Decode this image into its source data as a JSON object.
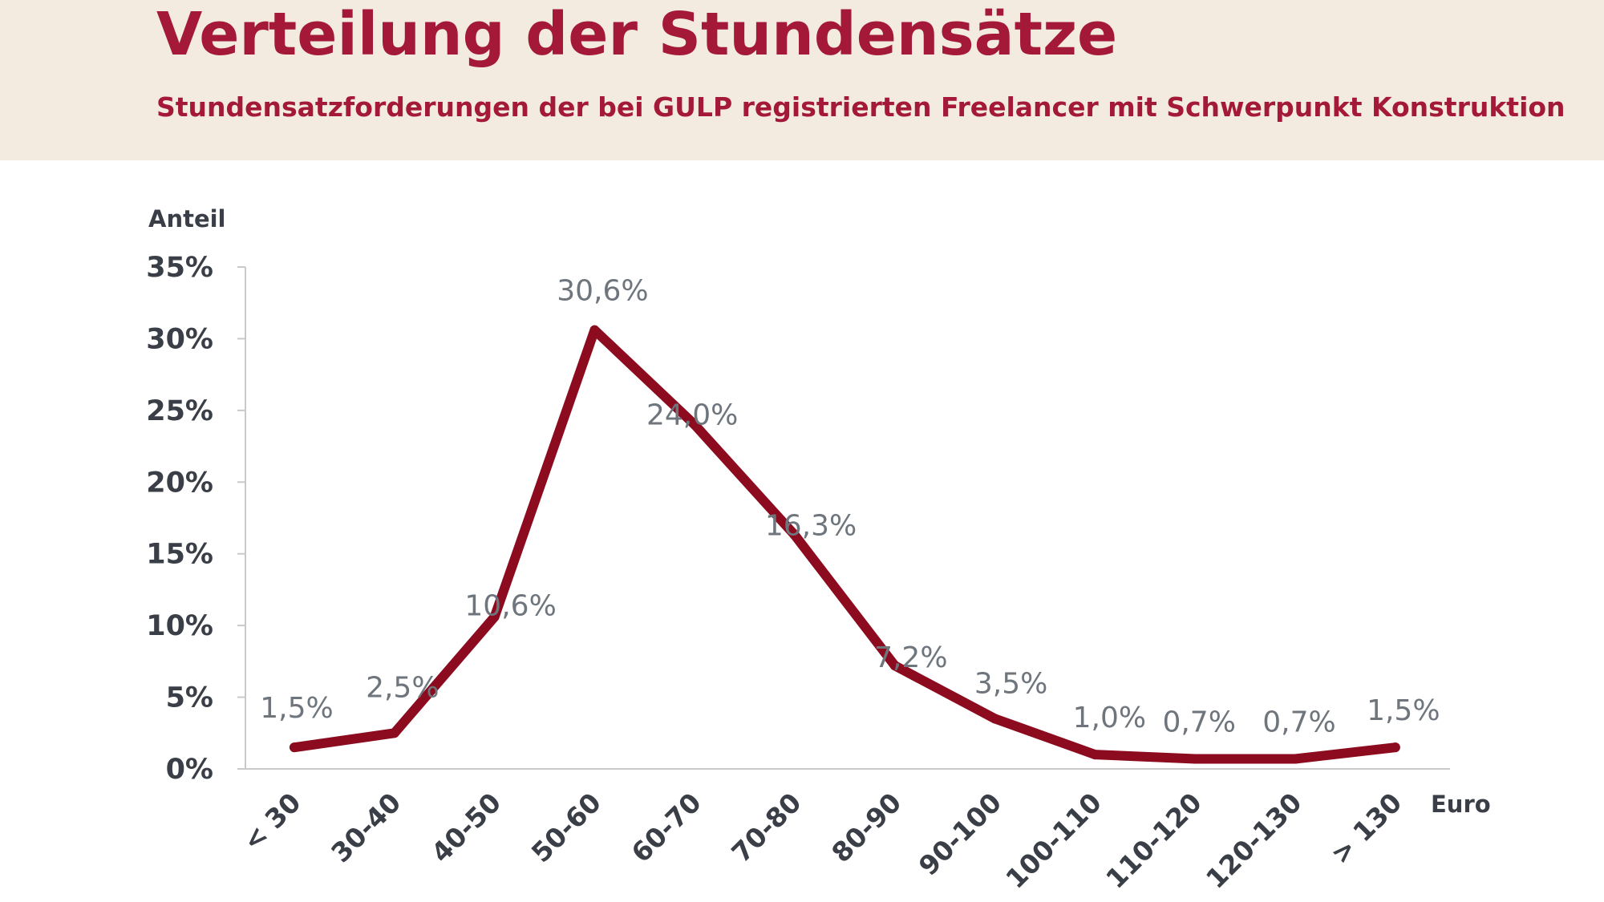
{
  "header": {
    "title": "Verteilung der Stundensätze",
    "subtitle": "Stundensatzforderungen der bei GULP registrierten Freelancer mit Schwerpunkt Konstruktion"
  },
  "colors": {
    "header_bg": "#f3ebe0",
    "title": "#a31937",
    "line": "#8c0b1f",
    "axis_text": "#3a3f47",
    "data_label": "#6e757d"
  },
  "chart_data": {
    "type": "line",
    "ylabel": "Anteil",
    "xlabel": "Euro",
    "ylim": [
      0,
      35
    ],
    "y_ticks": [
      0,
      5,
      10,
      15,
      20,
      25,
      30,
      35
    ],
    "y_tick_labels": [
      "0%",
      "5%",
      "10%",
      "15%",
      "20%",
      "25%",
      "30%",
      "35%"
    ],
    "grid": false,
    "categories": [
      "< 30",
      "30-40",
      "40-50",
      "50-60",
      "60-70",
      "70-80",
      "80-90",
      "90-100",
      "100-110",
      "110-120",
      "120-130",
      "> 130"
    ],
    "series": [
      {
        "values": [
          1.5,
          2.5,
          10.6,
          30.6,
          24.0,
          16.3,
          7.2,
          3.5,
          1.0,
          0.7,
          0.7,
          1.5
        ],
        "labels": [
          "1,5%",
          "2,5%",
          "10,6%",
          "30,6%",
          "24,0%",
          "16,3%",
          "7,2%",
          "3,5%",
          "1,0%",
          "0,7%",
          "0,7%",
          "1,5%"
        ]
      }
    ]
  }
}
